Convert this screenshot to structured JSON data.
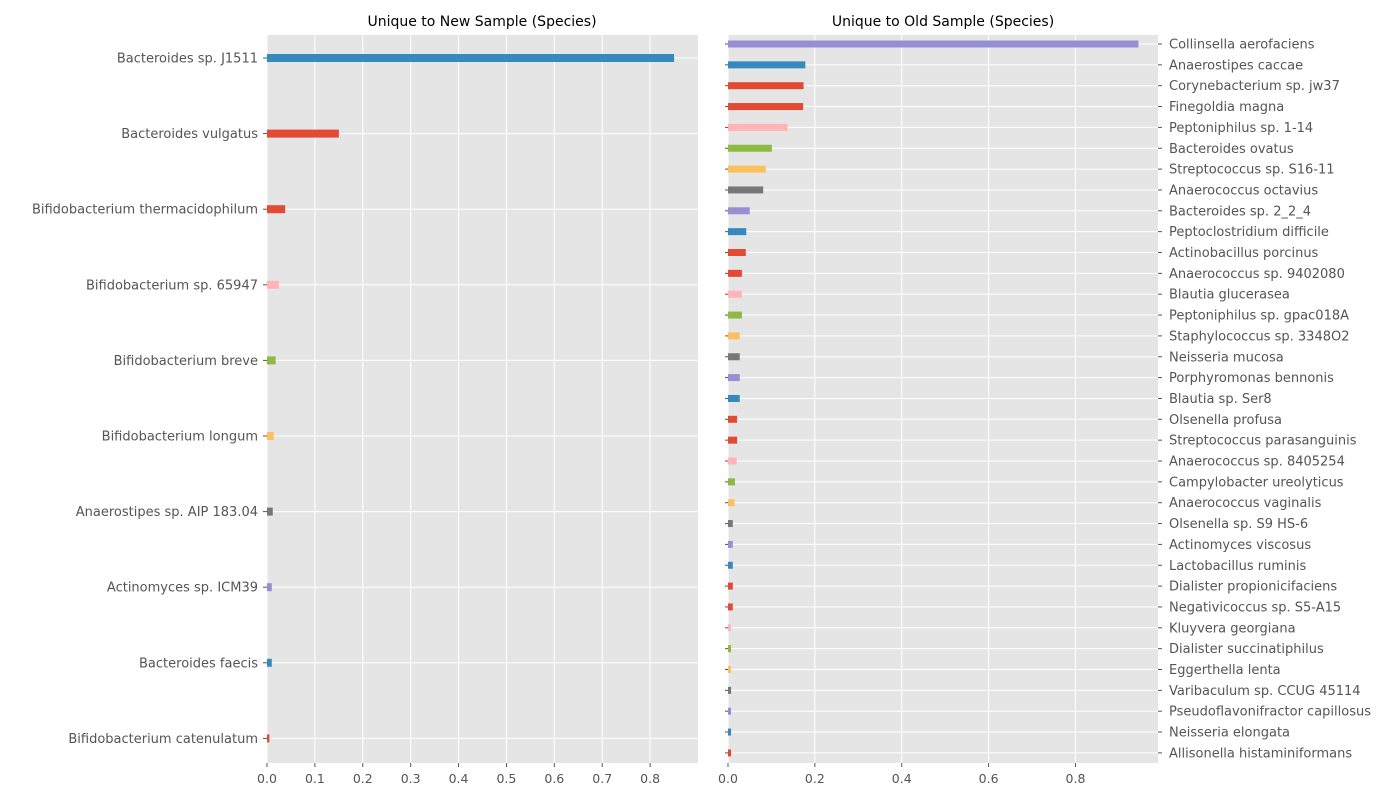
{
  "chart_data": [
    {
      "type": "bar",
      "orientation": "horizontal",
      "title": "Unique to New Sample (Species)",
      "xlim": [
        0,
        0.9
      ],
      "x_ticks": [
        "0.0",
        "0.1",
        "0.2",
        "0.3",
        "0.4",
        "0.5",
        "0.6",
        "0.7",
        "0.8"
      ],
      "x_tick_values": [
        0,
        0.1,
        0.2,
        0.3,
        0.4,
        0.5,
        0.6,
        0.7,
        0.8
      ],
      "grid": true,
      "label_side": "left",
      "categories": [
        "Bacteroides sp. J1511",
        "Bacteroides vulgatus",
        "Bifidobacterium thermacidophilum",
        "Bifidobacterium sp. 65947",
        "Bifidobacterium breve",
        "Bifidobacterium longum",
        "Anaerostipes sp. AIP 183.04",
        "Actinomyces sp. ICM39",
        "Bacteroides faecis",
        "Bifidobacterium catenulatum"
      ],
      "values": [
        0.85,
        0.15,
        0.038,
        0.025,
        0.018,
        0.014,
        0.012,
        0.01,
        0.01,
        0.005
      ],
      "colors": [
        "#348abd",
        "#e24a33",
        "#e24a33",
        "#ffb5b8",
        "#8eba42",
        "#fbc15e",
        "#777777",
        "#988ed5",
        "#348abd",
        "#e24a33"
      ]
    },
    {
      "type": "bar",
      "orientation": "horizontal",
      "title": "Unique to Old Sample (Species)",
      "xlim": [
        0,
        0.99
      ],
      "x_ticks": [
        "0.0",
        "0.2",
        "0.4",
        "0.6",
        "0.8"
      ],
      "x_tick_values": [
        0,
        0.2,
        0.4,
        0.6,
        0.8
      ],
      "grid": true,
      "label_side": "right",
      "categories": [
        "Collinsella aerofaciens",
        "Anaerostipes caccae",
        "Corynebacterium sp. jw37",
        "Finegoldia magna",
        "Peptoniphilus sp. 1-14",
        "Bacteroides ovatus",
        "Streptococcus sp. S16-11",
        "Anaerococcus octavius",
        "Bacteroides sp. 2_2_4",
        "Peptoclostridium difficile",
        "Actinobacillus porcinus",
        "Anaerococcus sp. 9402080",
        "Blautia glucerasea",
        "Peptoniphilus sp. gpac018A",
        "Staphylococcus sp. 3348O2",
        "Neisseria mucosa",
        "Porphyromonas bennonis",
        "Blautia sp. Ser8",
        "Olsenella profusa",
        "Streptococcus parasanguinis",
        "Anaerococcus sp. 8405254",
        "Campylobacter ureolyticus",
        "Anaerococcus vaginalis",
        "Olsenella sp. S9 HS-6",
        "Actinomyces viscosus",
        "Lactobacillus ruminis",
        "Dialister propionicifaciens",
        "Negativicoccus sp. S5-A15",
        "Kluyvera georgiana",
        "Dialister succinatiphilus",
        "Eggerthella lenta",
        "Varibaculum sp. CCUG 45114",
        "Pseudoflavonifractor capillosus",
        "Neisseria elongata",
        "Allisonella histaminiformans"
      ],
      "values": [
        0.945,
        0.178,
        0.174,
        0.173,
        0.137,
        0.101,
        0.087,
        0.081,
        0.05,
        0.042,
        0.041,
        0.032,
        0.032,
        0.032,
        0.027,
        0.027,
        0.027,
        0.027,
        0.021,
        0.021,
        0.02,
        0.016,
        0.015,
        0.011,
        0.011,
        0.011,
        0.011,
        0.011,
        0.007,
        0.007,
        0.007,
        0.007,
        0.007,
        0.007,
        0.007
      ],
      "colors": [
        "#988ed5",
        "#348abd",
        "#e24a33",
        "#e24a33",
        "#ffb5b8",
        "#8eba42",
        "#fbc15e",
        "#777777",
        "#988ed5",
        "#348abd",
        "#e24a33",
        "#e24a33",
        "#ffb5b8",
        "#8eba42",
        "#fbc15e",
        "#777777",
        "#988ed5",
        "#348abd",
        "#e24a33",
        "#e24a33",
        "#ffb5b8",
        "#8eba42",
        "#fbc15e",
        "#777777",
        "#988ed5",
        "#348abd",
        "#e24a33",
        "#e24a33",
        "#ffb5b8",
        "#8eba42",
        "#fbc15e",
        "#777777",
        "#988ed5",
        "#348abd",
        "#e24a33"
      ]
    }
  ]
}
